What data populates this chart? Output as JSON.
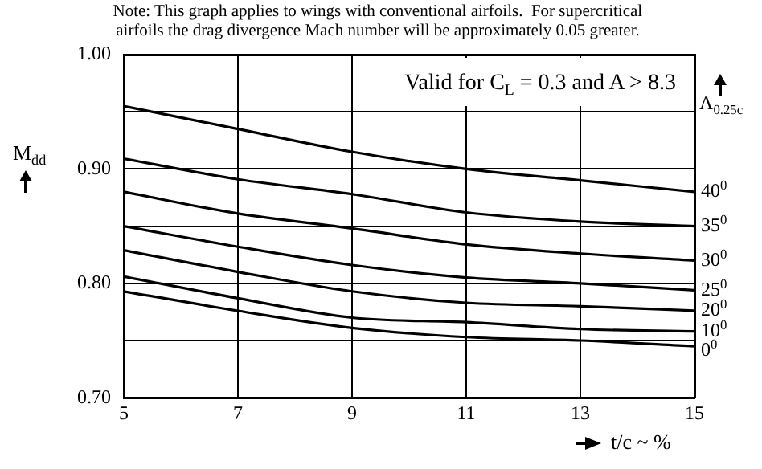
{
  "chart_data": {
    "type": "line",
    "annotations": [
      "Note: This graph applies to wings with conventional airfoils.  For supercritical",
      "airfoils the drag divergence Mach number will be approximately 0.05 greater.",
      "Valid for C$_{L}$ = 0.3 and A > 8.3"
    ],
    "ylabel": "M$_{dd}$",
    "xlabel": "t/c ~ %",
    "legend_title": "Λ$_{0.25c}$",
    "x": [
      5,
      7,
      9,
      11,
      13,
      15
    ],
    "series": [
      {
        "name": "40$^{0}$",
        "color": "#000000",
        "values": [
          0.955,
          0.935,
          0.915,
          0.9,
          0.89,
          0.88
        ]
      },
      {
        "name": "35$^{0}$",
        "color": "#000000",
        "values": [
          0.909,
          0.891,
          0.878,
          0.862,
          0.854,
          0.85
        ]
      },
      {
        "name": "30$^{0}$",
        "color": "#000000",
        "values": [
          0.88,
          0.861,
          0.848,
          0.834,
          0.826,
          0.82
        ]
      },
      {
        "name": "25$^{0}$",
        "color": "#000000",
        "values": [
          0.85,
          0.832,
          0.816,
          0.805,
          0.8,
          0.794
        ]
      },
      {
        "name": "20$^{0}$",
        "color": "#000000",
        "values": [
          0.829,
          0.81,
          0.793,
          0.783,
          0.78,
          0.776
        ]
      },
      {
        "name": "10$^{0}$",
        "color": "#000000",
        "values": [
          0.806,
          0.787,
          0.77,
          0.766,
          0.76,
          0.758
        ]
      },
      {
        "name": "0$^{0}$",
        "color": "#000000",
        "values": [
          0.793,
          0.776,
          0.761,
          0.753,
          0.75,
          0.745
        ]
      }
    ],
    "xlim": [
      5,
      15
    ],
    "xticks": [
      5,
      7,
      9,
      11,
      13,
      15
    ],
    "ylim": [
      0.7,
      1.0
    ],
    "yticks": [
      {
        "value": 0.7,
        "label": "0.70"
      },
      {
        "value": 0.75,
        "label": null
      },
      {
        "value": 0.8,
        "label": "0.80"
      },
      {
        "value": 0.85,
        "label": null
      },
      {
        "value": 0.9,
        "label": "0.90"
      },
      {
        "value": 0.95,
        "label": null
      },
      {
        "value": 1.0,
        "label": "1.00"
      }
    ],
    "grid": true,
    "legend": false,
    "marker": "none",
    "line_style": "solid"
  }
}
